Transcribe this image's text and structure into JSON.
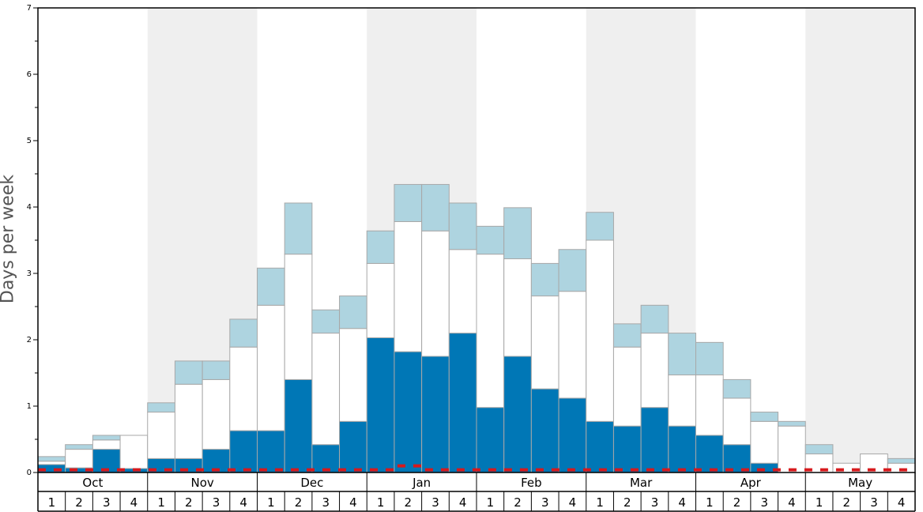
{
  "chart_data": {
    "type": "bar",
    "stacked": true,
    "ylabel": "Days per week",
    "ylim": [
      0,
      7
    ],
    "y_ticks": [
      "0",
      "1",
      "2",
      "3",
      "4",
      "5",
      "6",
      "7"
    ],
    "months": [
      "Oct",
      "Nov",
      "Dec",
      "Jan",
      "Feb",
      "Mar",
      "Apr",
      "May"
    ],
    "week_labels": [
      "1",
      "2",
      "3",
      "4"
    ],
    "month_shading": [
      false,
      true,
      false,
      true,
      false,
      true,
      false,
      true
    ],
    "series": [
      {
        "color": "#0077b6",
        "values": [
          0.12,
          0.07,
          0.35,
          0.06,
          0.21,
          0.21,
          0.35,
          0.63,
          0.63,
          1.4,
          0.42,
          0.77,
          2.03,
          1.82,
          1.75,
          2.1,
          0.98,
          1.75,
          1.26,
          1.12,
          0.77,
          0.7,
          0.98,
          0.7,
          0.56,
          0.42,
          0.14,
          0.0,
          0.0,
          0.0,
          0.0,
          0.0
        ]
      },
      {
        "color": "#ffffff",
        "values": [
          0.05,
          0.28,
          0.14,
          0.5,
          0.7,
          1.12,
          1.05,
          1.26,
          1.89,
          1.89,
          1.68,
          1.4,
          1.12,
          1.96,
          1.89,
          1.26,
          2.31,
          1.47,
          1.4,
          1.61,
          2.73,
          1.19,
          1.12,
          0.77,
          0.91,
          0.7,
          0.63,
          0.7,
          0.28,
          0.14,
          0.28,
          0.14
        ]
      },
      {
        "color": "#aed4e0",
        "values": [
          0.07,
          0.07,
          0.07,
          0.0,
          0.14,
          0.35,
          0.28,
          0.42,
          0.56,
          0.77,
          0.35,
          0.49,
          0.49,
          0.56,
          0.7,
          0.7,
          0.42,
          0.77,
          0.49,
          0.63,
          0.42,
          0.35,
          0.42,
          0.63,
          0.49,
          0.28,
          0.14,
          0.07,
          0.14,
          0.0,
          0.0,
          0.07
        ]
      }
    ],
    "reference_line": {
      "color": "#d7191c",
      "style": "dashed",
      "values": [
        0.04,
        0.04,
        0.04,
        0.04,
        0.04,
        0.04,
        0.04,
        0.04,
        0.04,
        0.04,
        0.04,
        0.04,
        0.04,
        0.1,
        0.04,
        0.04,
        0.04,
        0.04,
        0.04,
        0.04,
        0.04,
        0.04,
        0.04,
        0.04,
        0.04,
        0.04,
        0.04,
        0.04,
        0.04,
        0.04,
        0.04,
        0.04
      ]
    },
    "grid": false
  }
}
